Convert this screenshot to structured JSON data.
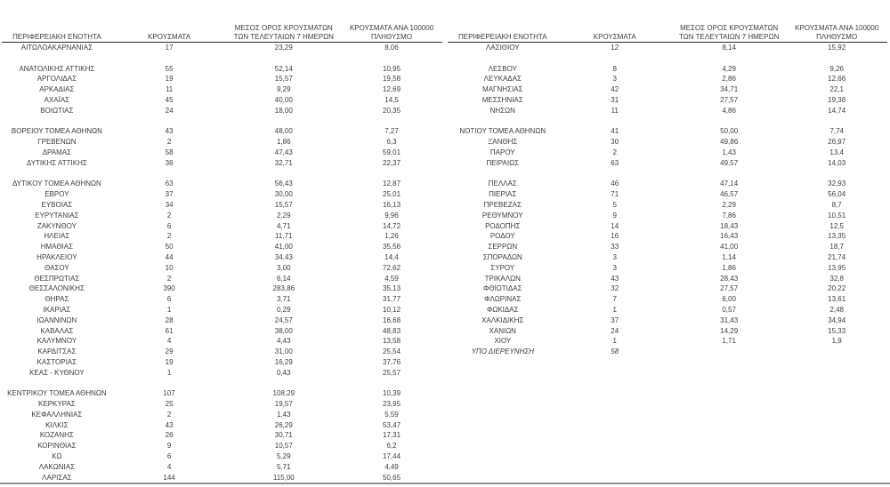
{
  "page": {
    "background": "#ffffff",
    "text_color": "#3d3d3d",
    "header_rule_color": "#2a2a2a",
    "bottom_rule_color": "#8f8f8f"
  },
  "columns": {
    "region": "ΠΕΡΙΦΕΡΕΙΑΚΗ ΕΝΟΤΗΤΑ",
    "cases": "ΚΡΟΥΣΜΑΤΑ",
    "avg7_line1": "ΜΕΣΟΣ ΟΡΟΣ ΚΡΟΥΣΜΑΤΩΝ",
    "avg7_line2": "ΤΩΝ ΤΕΛΕΥΤΑΙΩΝ 7 ΗΜΕΡΩΝ",
    "per100k_line1": "ΚΡΟΥΣΜΑΤΑ ΑΝΑ 100000",
    "per100k_line2": "ΠΛΗΘΥΣΜΟ"
  },
  "tables": {
    "left": {
      "rows": [
        [
          "ΑΙΤΩΛΟΑΚΑΡΝΑΝΙΑΣ",
          "17",
          "23,29",
          "8,06"
        ],
        [
          "",
          "",
          "",
          ""
        ],
        [
          "ΑΝΑΤΟΛΙΚΗΣ ΑΤΤΙΚΗΣ",
          "55",
          "52,14",
          "10,95"
        ],
        [
          "ΑΡΓΟΛΙΔΑΣ",
          "19",
          "15,57",
          "19,58"
        ],
        [
          "ΑΡΚΑΔΙΑΣ",
          "11",
          "9,29",
          "12,69"
        ],
        [
          "ΑΧΑΪΑΣ",
          "45",
          "40,00",
          "14,5"
        ],
        [
          "ΒΟΙΩΤΙΑΣ",
          "24",
          "18,00",
          "20,35"
        ],
        [
          "",
          "",
          "",
          ""
        ],
        [
          "ΒΟΡΕΙΟΥ ΤΟΜΕΑ ΑΘΗΝΩΝ",
          "43",
          "48,00",
          "7,27"
        ],
        [
          "ΓΡΕΒΕΝΩΝ",
          "2",
          "1,86",
          "6,3"
        ],
        [
          "ΔΡΑΜΑΣ",
          "58",
          "47,43",
          "59,01"
        ],
        [
          "ΔΥΤΙΚΗΣ ΑΤΤΙΚΗΣ",
          "36",
          "32,71",
          "22,37"
        ],
        [
          "",
          "",
          "",
          ""
        ],
        [
          "ΔΥΤΙΚΟΥ ΤΟΜΕΑ ΑΘΗΝΩΝ",
          "63",
          "56,43",
          "12,87"
        ],
        [
          "ΕΒΡΟΥ",
          "37",
          "30,00",
          "25,01"
        ],
        [
          "ΕΥΒΟΙΑΣ",
          "34",
          "15,57",
          "16,13"
        ],
        [
          "ΕΥΡΥΤΑΝΙΑΣ",
          "2",
          "2,29",
          "9,96"
        ],
        [
          "ΖΑΚΥΝΘΟΥ",
          "6",
          "4,71",
          "14,72"
        ],
        [
          "ΗΛΕΙΑΣ",
          "2",
          "11,71",
          "1,26"
        ],
        [
          "ΗΜΑΘΙΑΣ",
          "50",
          "41,00",
          "35,56"
        ],
        [
          "ΗΡΑΚΛΕΙΟΥ",
          "44",
          "34,43",
          "14,4"
        ],
        [
          "ΘΑΣΟΥ",
          "10",
          "3,00",
          "72,62"
        ],
        [
          "ΘΕΣΠΡΩΤΙΑΣ",
          "2",
          "6,14",
          "4,59"
        ],
        [
          "ΘΕΣΣΑΛΟΝΙΚΗΣ",
          "390",
          "283,86",
          "35,13"
        ],
        [
          "ΘΗΡΑΣ",
          "6",
          "3,71",
          "31,77"
        ],
        [
          "ΙΚΑΡΙΑΣ",
          "1",
          "0,29",
          "10,12"
        ],
        [
          "ΙΩΑΝΝΙΝΩΝ",
          "28",
          "24,57",
          "16,68"
        ],
        [
          "ΚΑΒΑΛΑΣ",
          "61",
          "38,00",
          "48,83"
        ],
        [
          "ΚΑΛΥΜΝΟΥ",
          "4",
          "4,43",
          "13,58"
        ],
        [
          "ΚΑΡΔΙΤΣΑΣ",
          "29",
          "31,00",
          "25,54"
        ],
        [
          "ΚΑΣΤΟΡΙΑΣ",
          "19",
          "16,29",
          "37,76"
        ],
        [
          "ΚΕΑΣ - ΚΥΘΝΟΥ",
          "1",
          "0,43",
          "25,57"
        ],
        [
          "",
          "",
          "",
          ""
        ],
        [
          "ΚΕΝΤΡΙΚΟΥ ΤΟΜΕΑ ΑΘΗΝΩΝ",
          "107",
          "108,29",
          "10,39"
        ],
        [
          "ΚΕΡΚΥΡΑΣ",
          "25",
          "19,57",
          "23,95"
        ],
        [
          "ΚΕΦΑΛΛΗΝΙΑΣ",
          "2",
          "1,43",
          "5,59"
        ],
        [
          "ΚΙΛΚΙΣ",
          "43",
          "26,29",
          "53,47"
        ],
        [
          "ΚΟΖΑΝΗΣ",
          "26",
          "30,71",
          "17,31"
        ],
        [
          "ΚΟΡΙΝΘΙΑΣ",
          "9",
          "10,57",
          "6,2"
        ],
        [
          "ΚΩ",
          "6",
          "5,29",
          "17,44"
        ],
        [
          "ΛΑΚΩΝΙΑΣ",
          "4",
          "5,71",
          "4,49"
        ],
        [
          "ΛΑΡΙΣΑΣ",
          "144",
          "115,00",
          "50,65"
        ]
      ]
    },
    "right": {
      "rows": [
        [
          "ΛΑΣΙΘΙΟΥ",
          "12",
          "8,14",
          "15,92"
        ],
        [
          "",
          "",
          "",
          ""
        ],
        [
          "ΛΕΣΒΟΥ",
          "8",
          "4,29",
          "9,26"
        ],
        [
          "ΛΕΥΚΑΔΑΣ",
          "3",
          "2,86",
          "12,66"
        ],
        [
          "ΜΑΓΝΗΣΙΑΣ",
          "42",
          "34,71",
          "22,1"
        ],
        [
          "ΜΕΣΣΗΝΙΑΣ",
          "31",
          "27,57",
          "19,38"
        ],
        [
          "ΝΗΣΩΝ",
          "11",
          "4,86",
          "14,74"
        ],
        [
          "",
          "",
          "",
          ""
        ],
        [
          "ΝΟΤΙΟΥ ΤΟΜΕΑ ΑΘΗΝΩΝ",
          "41",
          "50,00",
          "7,74"
        ],
        [
          "ΞΑΝΘΗΣ",
          "30",
          "49,86",
          "26,97"
        ],
        [
          "ΠΑΡΟΥ",
          "2",
          "1,43",
          "13,4"
        ],
        [
          "ΠΕΙΡΑΙΩΣ",
          "63",
          "49,57",
          "14,03"
        ],
        [
          "",
          "",
          "",
          ""
        ],
        [
          "ΠΕΛΛΑΣ",
          "46",
          "47,14",
          "32,93"
        ],
        [
          "ΠΙΕΡΙΑΣ",
          "71",
          "46,57",
          "56,04"
        ],
        [
          "ΠΡΕΒΕΖΑΣ",
          "5",
          "2,29",
          "8,7"
        ],
        [
          "ΡΕΘΥΜΝΟΥ",
          "9",
          "7,86",
          "10,51"
        ],
        [
          "ΡΟΔΟΠΗΣ",
          "14",
          "18,43",
          "12,5"
        ],
        [
          "ΡΟΔΟΥ",
          "16",
          "16,43",
          "13,35"
        ],
        [
          "ΣΕΡΡΩΝ",
          "33",
          "41,00",
          "18,7"
        ],
        [
          "ΣΠΟΡΑΔΩΝ",
          "3",
          "1,14",
          "21,74"
        ],
        [
          "ΣΥΡΟΥ",
          "3",
          "1,86",
          "13,95"
        ],
        [
          "ΤΡΙΚΑΛΩΝ",
          "43",
          "28,43",
          "32,8"
        ],
        [
          "ΦΘΙΩΤΙΔΑΣ",
          "32",
          "27,57",
          "20,22"
        ],
        [
          "ΦΛΩΡΙΝΑΣ",
          "7",
          "6,00",
          "13,61"
        ],
        [
          "ΦΩΚΙΔΑΣ",
          "1",
          "0,57",
          "2,48"
        ],
        [
          "ΧΑΛΚΙΔΙΚΗΣ",
          "37",
          "31,43",
          "34,94"
        ],
        [
          "ΧΑΝΙΩΝ",
          "24",
          "14,29",
          "15,33"
        ],
        [
          "ΧΙΟΥ",
          "1",
          "1,71",
          "1,9"
        ],
        [
          "ΥΠΟ ΔΙΕΡΕΥΝΗΣΗ",
          "58",
          "",
          "",
          "italic"
        ]
      ]
    }
  }
}
